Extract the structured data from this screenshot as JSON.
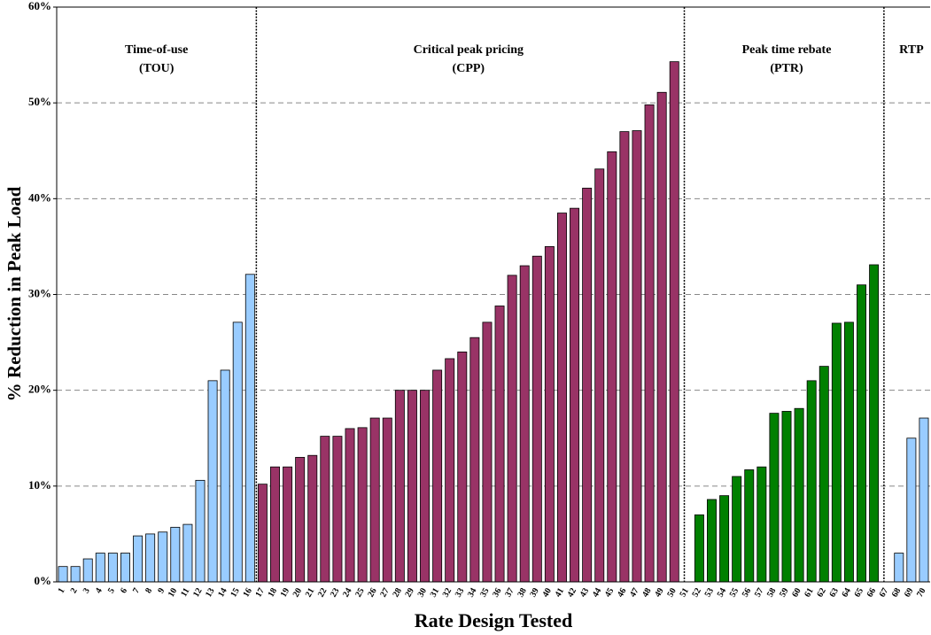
{
  "chart_data": {
    "type": "bar",
    "y_label": "% Reduction in Peak Load",
    "x_label": "Rate Design Tested",
    "categories": [
      "1",
      "2",
      "3",
      "4",
      "5",
      "6",
      "7",
      "8",
      "9",
      "10",
      "11",
      "12",
      "13",
      "14",
      "15",
      "16",
      "17",
      "18",
      "19",
      "20",
      "21",
      "22",
      "23",
      "24",
      "25",
      "26",
      "27",
      "28",
      "29",
      "30",
      "31",
      "32",
      "33",
      "34",
      "35",
      "36",
      "37",
      "38",
      "39",
      "40",
      "41",
      "42",
      "43",
      "44",
      "45",
      "46",
      "47",
      "48",
      "49",
      "50",
      "51",
      "52",
      "53",
      "54",
      "55",
      "56",
      "57",
      "58",
      "59",
      "60",
      "61",
      "62",
      "63",
      "64",
      "65",
      "66",
      "67",
      "68",
      "69",
      "70"
    ],
    "series": [
      {
        "name": "Time-of-use",
        "abbreviation": "(TOU)",
        "color": "#99ccff",
        "values": [
          1.6,
          1.6,
          2.4,
          3.0,
          3.0,
          3.0,
          4.8,
          5.0,
          5.2,
          5.7,
          6.0,
          10.6,
          21.0,
          22.1,
          27.1,
          32.1,
          null,
          null,
          null,
          null,
          null,
          null,
          null,
          null,
          null,
          null,
          null,
          null,
          null,
          null,
          null,
          null,
          null,
          null,
          null,
          null,
          null,
          null,
          null,
          null,
          null,
          null,
          null,
          null,
          null,
          null,
          null,
          null,
          null,
          null,
          null,
          null,
          null,
          null,
          null,
          null,
          null,
          null,
          null,
          null,
          null,
          null,
          null,
          null,
          null,
          null,
          null,
          null,
          null,
          null
        ]
      },
      {
        "name": "Critical peak pricing",
        "abbreviation": "(CPP)",
        "color": "#993366",
        "values": [
          null,
          null,
          null,
          null,
          null,
          null,
          null,
          null,
          null,
          null,
          null,
          null,
          null,
          null,
          null,
          null,
          10.2,
          12.0,
          12.0,
          13.0,
          13.2,
          15.2,
          15.2,
          16.0,
          16.1,
          17.1,
          17.1,
          20.0,
          20.0,
          20.0,
          22.1,
          23.3,
          24.0,
          25.5,
          27.1,
          28.8,
          32.0,
          33.0,
          34.0,
          35.0,
          38.5,
          39.0,
          41.1,
          43.1,
          44.9,
          47.0,
          47.1,
          49.8,
          51.1,
          54.3,
          null,
          null,
          null,
          null,
          null,
          null,
          null,
          null,
          null,
          null,
          null,
          null,
          null,
          null,
          null,
          null,
          null,
          null,
          null,
          null
        ]
      },
      {
        "name": "Peak time rebate",
        "abbreviation": "(PTR)",
        "color": "#008000",
        "values": [
          null,
          null,
          null,
          null,
          null,
          null,
          null,
          null,
          null,
          null,
          null,
          null,
          null,
          null,
          null,
          null,
          null,
          null,
          null,
          null,
          null,
          null,
          null,
          null,
          null,
          null,
          null,
          null,
          null,
          null,
          null,
          null,
          null,
          null,
          null,
          null,
          null,
          null,
          null,
          null,
          null,
          null,
          null,
          null,
          null,
          null,
          null,
          null,
          null,
          null,
          null,
          7.0,
          8.6,
          9.0,
          11.0,
          11.7,
          12.0,
          17.6,
          17.8,
          18.1,
          21.0,
          22.5,
          27.0,
          27.1,
          31.0,
          33.1,
          null,
          null,
          null,
          null
        ]
      },
      {
        "name": "RTP",
        "color": "#99ccff",
        "values": [
          null,
          null,
          null,
          null,
          null,
          null,
          null,
          null,
          null,
          null,
          null,
          null,
          null,
          null,
          null,
          null,
          null,
          null,
          null,
          null,
          null,
          null,
          null,
          null,
          null,
          null,
          null,
          null,
          null,
          null,
          null,
          null,
          null,
          null,
          null,
          null,
          null,
          null,
          null,
          null,
          null,
          null,
          null,
          null,
          null,
          null,
          null,
          null,
          null,
          null,
          null,
          null,
          null,
          null,
          null,
          null,
          null,
          null,
          null,
          null,
          null,
          null,
          null,
          null,
          null,
          null,
          null,
          3.0,
          15.0,
          17.1
        ]
      }
    ],
    "ylim": [
      0,
      60
    ],
    "yticks": [
      {
        "value": 0,
        "label": "0%"
      },
      {
        "value": 10,
        "label": "10%"
      },
      {
        "value": 20,
        "label": "20%"
      },
      {
        "value": 30,
        "label": "30%"
      },
      {
        "value": 40,
        "label": "40%"
      },
      {
        "value": 50,
        "label": "50%"
      },
      {
        "value": 60,
        "label": "60%"
      }
    ],
    "grid": true
  }
}
